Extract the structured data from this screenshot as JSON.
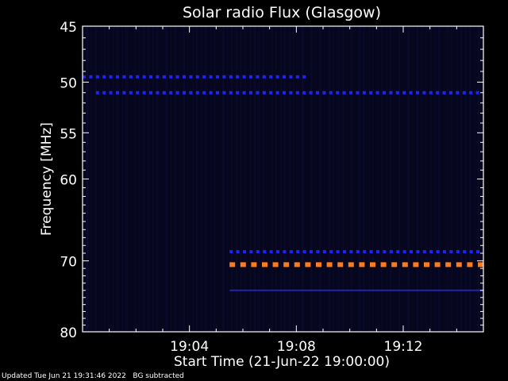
{
  "chart_data": {
    "type": "heatmap",
    "title": "Solar radio Flux (Glasgow)",
    "xlabel": "Start Time (21-Jun-22 19:00:00)",
    "ylabel": "Frequency [MHz]",
    "xlim_minutes": [
      0,
      15
    ],
    "x_ticks": [
      {
        "label": "19:04",
        "value": 4
      },
      {
        "label": "19:08",
        "value": 8
      },
      {
        "label": "19:12",
        "value": 12
      }
    ],
    "ylim": [
      45,
      80
    ],
    "y_scale": "log",
    "y_inverted": true,
    "y_ticks": [
      45,
      50,
      55,
      60,
      70,
      80
    ],
    "background_color": "#06061e",
    "colors": {
      "low": "#06061e",
      "mid": "#1e22ff",
      "high": "#ff7a1a"
    },
    "emission_bands": [
      {
        "freq": 49.5,
        "start": 0.0,
        "end": 8.4,
        "intensity": "mid",
        "dashed": true
      },
      {
        "freq": 51.0,
        "start": 0.5,
        "end": 15.0,
        "intensity": "mid",
        "dashed": true
      },
      {
        "freq": 68.8,
        "start": 5.5,
        "end": 15.0,
        "intensity": "mid",
        "dashed": true
      },
      {
        "freq": 70.5,
        "start": 5.5,
        "end": 15.0,
        "intensity": "high",
        "dashed": true
      },
      {
        "freq": 74.0,
        "start": 5.5,
        "end": 15.0,
        "intensity": "low-mid",
        "dashed": false
      }
    ]
  },
  "footer": {
    "updated": "Updated Tue Jun 21 19:31:46 2022",
    "note": "BG subtracted"
  }
}
